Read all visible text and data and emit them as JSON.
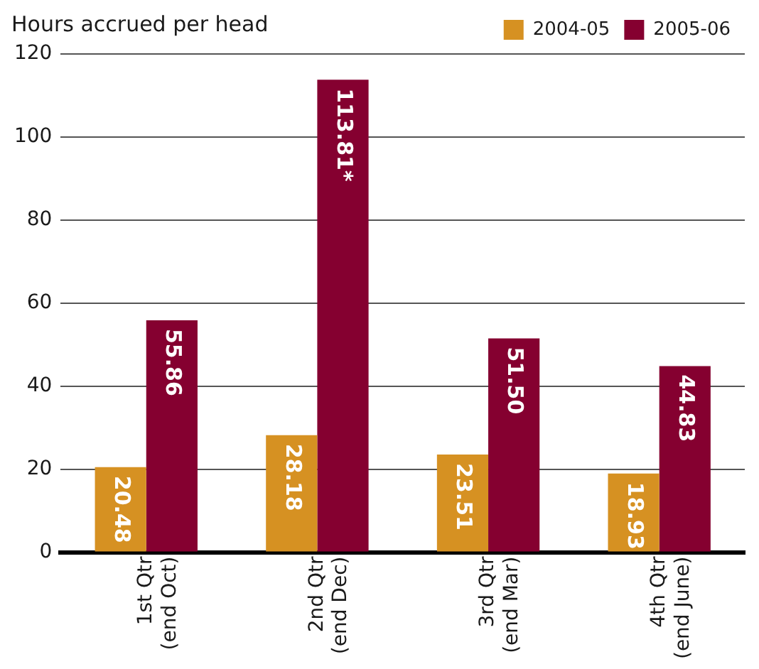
{
  "chart_data": {
    "type": "bar",
    "ylabel": "Hours accrued per head",
    "categories": [
      "1st Qtr (end Oct)",
      "2nd Qtr (end Dec)",
      "3rd Qtr (end Mar)",
      "4th Qtr (end June)"
    ],
    "series": [
      {
        "name": "2004-05",
        "color": "#d69122",
        "values": [
          20.48,
          28.18,
          23.51,
          18.93
        ],
        "value_labels": [
          "20.48",
          "28.18",
          "23.51",
          "18.93"
        ]
      },
      {
        "name": "2005-06",
        "color": "#850030",
        "values": [
          55.86,
          113.81,
          51.5,
          44.83
        ],
        "value_labels": [
          "55.86",
          "113.81*",
          "51.50",
          "44.83"
        ]
      }
    ],
    "ylim": [
      0,
      120
    ],
    "yticks": [
      0,
      20,
      40,
      60,
      80,
      100,
      120
    ],
    "grid": "y",
    "legend": "top right"
  }
}
